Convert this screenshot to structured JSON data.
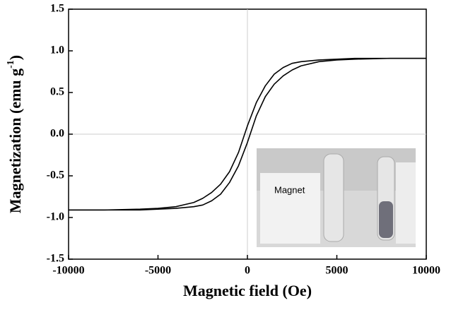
{
  "chart_data": {
    "type": "line",
    "xlabel": "Magnetic field (Oe)",
    "ylabel": {
      "main": "Magnetization (emu g",
      "sup": "-1",
      "end": ")"
    },
    "inset_label": "Magnet",
    "xlim": [
      -10000,
      10000
    ],
    "xticks": [
      -10000,
      -5000,
      0,
      5000,
      10000
    ],
    "ylim": [
      -1.5,
      1.5
    ],
    "yticks": [
      -1.5,
      {
        "value": -1.0,
        "label": "-1.0"
      },
      -0.5,
      {
        "value": 0,
        "label": "0.0"
      },
      0.5,
      {
        "value": 1.0,
        "label": "1.0"
      },
      1.5
    ],
    "zero_lines": true,
    "series": [
      {
        "color": "#000000",
        "x": [
          -10000,
          -8000,
          -6000,
          -5000,
          -4000,
          -3000,
          -2500,
          -2000,
          -1500,
          -1000,
          -500,
          0,
          500,
          1000,
          1500,
          2000,
          2500,
          3000,
          4000,
          5000,
          6000,
          8000,
          10000
        ],
        "values": [
          -0.91,
          -0.91,
          -0.9,
          -0.89,
          -0.87,
          -0.82,
          -0.77,
          -0.7,
          -0.6,
          -0.45,
          -0.22,
          0.1,
          0.38,
          0.58,
          0.72,
          0.8,
          0.85,
          0.87,
          0.89,
          0.9,
          0.91,
          0.91,
          0.91
        ]
      },
      {
        "color": "#000000",
        "x": [
          -10000,
          -8000,
          -6000,
          -5000,
          -4000,
          -3000,
          -2500,
          -2000,
          -1500,
          -1000,
          -500,
          0,
          500,
          1000,
          1500,
          2000,
          2500,
          3000,
          4000,
          5000,
          6000,
          8000,
          10000
        ],
        "values": [
          -0.91,
          -0.91,
          -0.91,
          -0.9,
          -0.89,
          -0.87,
          -0.85,
          -0.8,
          -0.72,
          -0.58,
          -0.38,
          -0.1,
          0.22,
          0.45,
          0.6,
          0.7,
          0.77,
          0.82,
          0.87,
          0.89,
          0.9,
          0.91,
          0.91
        ]
      }
    ]
  }
}
